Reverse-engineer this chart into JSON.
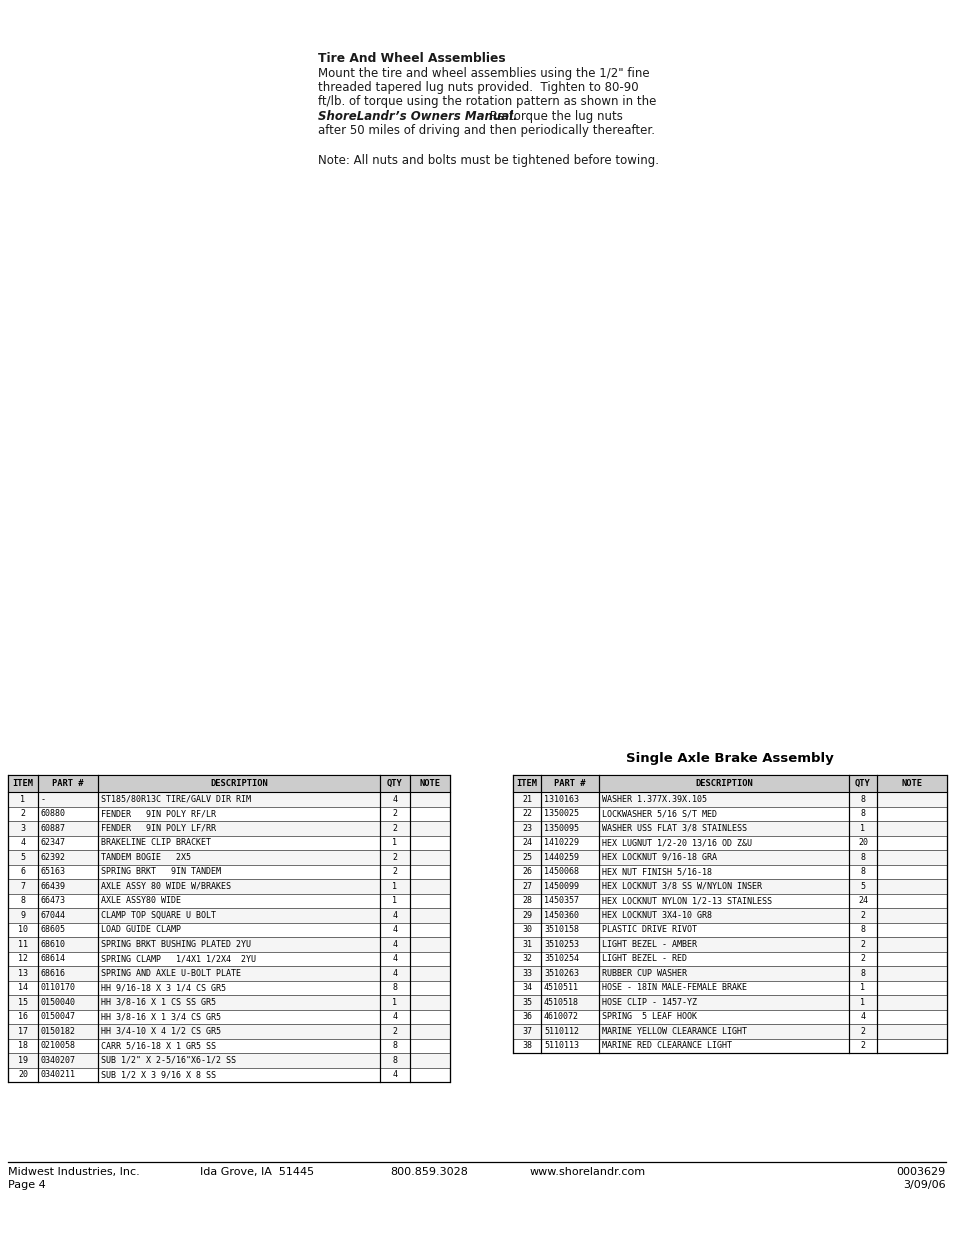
{
  "title_text": "Tire And Wheel Assemblies",
  "body_line1": "Mount the tire and wheel assemblies using the 1/2\" fine",
  "body_line2": "threaded tapered lug nuts provided.  Tighten to 80-90",
  "body_line3": "ft/lb. of torque using the rotation pattern as shown in the",
  "body_bold": "ShoreLandr’s Owners Manual.",
  "body_line4_rest": " Re-torque the lug nuts",
  "body_line5": "after 50 miles of driving and then periodically thereafter.",
  "note_text": "Note: All nuts and bolts must be tightened before towing.",
  "section_title": "Single Axle Brake Assembly",
  "footer_left": "Midwest Industries, Inc.",
  "footer_city": "Ida Grove, IA  51445",
  "footer_phone": "800.859.3028",
  "footer_web": "www.shorelandr.com",
  "footer_part": "0003629",
  "footer_page": "Page 4",
  "footer_date": "3/09/06",
  "table_headers": [
    "ITEM",
    "PART #",
    "DESCRIPTION",
    "QTY",
    "NOTE"
  ],
  "table_rows_left": [
    [
      "1",
      "-",
      "ST185/80R13C TIRE/GALV DIR RIM",
      "4",
      ""
    ],
    [
      "2",
      "60880",
      "FENDER   9IN POLY RF/LR",
      "2",
      ""
    ],
    [
      "3",
      "60887",
      "FENDER   9IN POLY LF/RR",
      "2",
      ""
    ],
    [
      "4",
      "62347",
      "BRAKELINE CLIP BRACKET",
      "1",
      ""
    ],
    [
      "5",
      "62392",
      "TANDEM BOGIE   2X5",
      "2",
      ""
    ],
    [
      "6",
      "65163",
      "SPRING BRKT   9IN TANDEM",
      "2",
      ""
    ],
    [
      "7",
      "66439",
      "AXLE ASSY 80 WIDE W/BRAKES",
      "1",
      ""
    ],
    [
      "8",
      "66473",
      "AXLE ASSY80 WIDE",
      "1",
      ""
    ],
    [
      "9",
      "67044",
      "CLAMP TOP SQUARE U BOLT",
      "4",
      ""
    ],
    [
      "10",
      "68605",
      "LOAD GUIDE CLAMP",
      "4",
      ""
    ],
    [
      "11",
      "68610",
      "SPRING BRKT BUSHING PLATED 2YU",
      "4",
      ""
    ],
    [
      "12",
      "68614",
      "SPRING CLAMP   1/4X1 1/2X4  2YU",
      "4",
      ""
    ],
    [
      "13",
      "68616",
      "SPRING AND AXLE U-BOLT PLATE",
      "4",
      ""
    ],
    [
      "14",
      "0110170",
      "HH 9/16-18 X 3 1/4 CS GR5",
      "8",
      ""
    ],
    [
      "15",
      "0150040",
      "HH 3/8-16 X 1 CS SS GR5",
      "1",
      ""
    ],
    [
      "16",
      "0150047",
      "HH 3/8-16 X 1 3/4 CS GR5",
      "4",
      ""
    ],
    [
      "17",
      "0150182",
      "HH 3/4-10 X 4 1/2 CS GR5",
      "2",
      ""
    ],
    [
      "18",
      "0210058",
      "CARR 5/16-18 X 1 GR5 SS",
      "8",
      ""
    ],
    [
      "19",
      "0340207",
      "SUB 1/2\" X 2-5/16\"X6-1/2 SS",
      "8",
      ""
    ],
    [
      "20",
      "0340211",
      "SUB 1/2 X 3 9/16 X 8 SS",
      "4",
      ""
    ]
  ],
  "table_rows_right": [
    [
      "21",
      "1310163",
      "WASHER 1.377X.39X.105",
      "8",
      ""
    ],
    [
      "22",
      "1350025",
      "LOCKWASHER 5/16 S/T MED",
      "8",
      ""
    ],
    [
      "23",
      "1350095",
      "WASHER USS FLAT 3/8 STAINLESS",
      "1",
      ""
    ],
    [
      "24",
      "1410229",
      "HEX LUGNUT 1/2-20 13/16 OD Z&U",
      "20",
      ""
    ],
    [
      "25",
      "1440259",
      "HEX LOCKNUT 9/16-18 GRA",
      "8",
      ""
    ],
    [
      "26",
      "1450068",
      "HEX NUT FINISH 5/16-18",
      "8",
      ""
    ],
    [
      "27",
      "1450099",
      "HEX LOCKNUT 3/8 SS W/NYLON INSER",
      "5",
      ""
    ],
    [
      "28",
      "1450357",
      "HEX LOCKNUT NYLON 1/2-13 STAINLESS",
      "24",
      ""
    ],
    [
      "29",
      "1450360",
      "HEX LOCKNUT 3X4-10 GR8",
      "2",
      ""
    ],
    [
      "30",
      "3510158",
      "PLASTIC DRIVE RIVOT",
      "8",
      ""
    ],
    [
      "31",
      "3510253",
      "LIGHT BEZEL - AMBER",
      "2",
      ""
    ],
    [
      "32",
      "3510254",
      "LIGHT BEZEL - RED",
      "2",
      ""
    ],
    [
      "33",
      "3510263",
      "RUBBER CUP WASHER",
      "8",
      ""
    ],
    [
      "34",
      "4510511",
      "HOSE - 18IN MALE-FEMALE BRAKE",
      "1",
      ""
    ],
    [
      "35",
      "4510518",
      "HOSE CLIP - 1457-YZ",
      "1",
      ""
    ],
    [
      "36",
      "4610072",
      "SPRING  5 LEAF HOOK",
      "4",
      ""
    ],
    [
      "37",
      "5110112",
      "MARINE YELLOW CLEARANCE LIGHT",
      "2",
      ""
    ],
    [
      "38",
      "5110113",
      "MARINE RED CLEARANCE LIGHT",
      "2",
      ""
    ]
  ],
  "bg_color": "#ffffff",
  "text_color": "#1a1a1a",
  "table_border_color": "#000000"
}
